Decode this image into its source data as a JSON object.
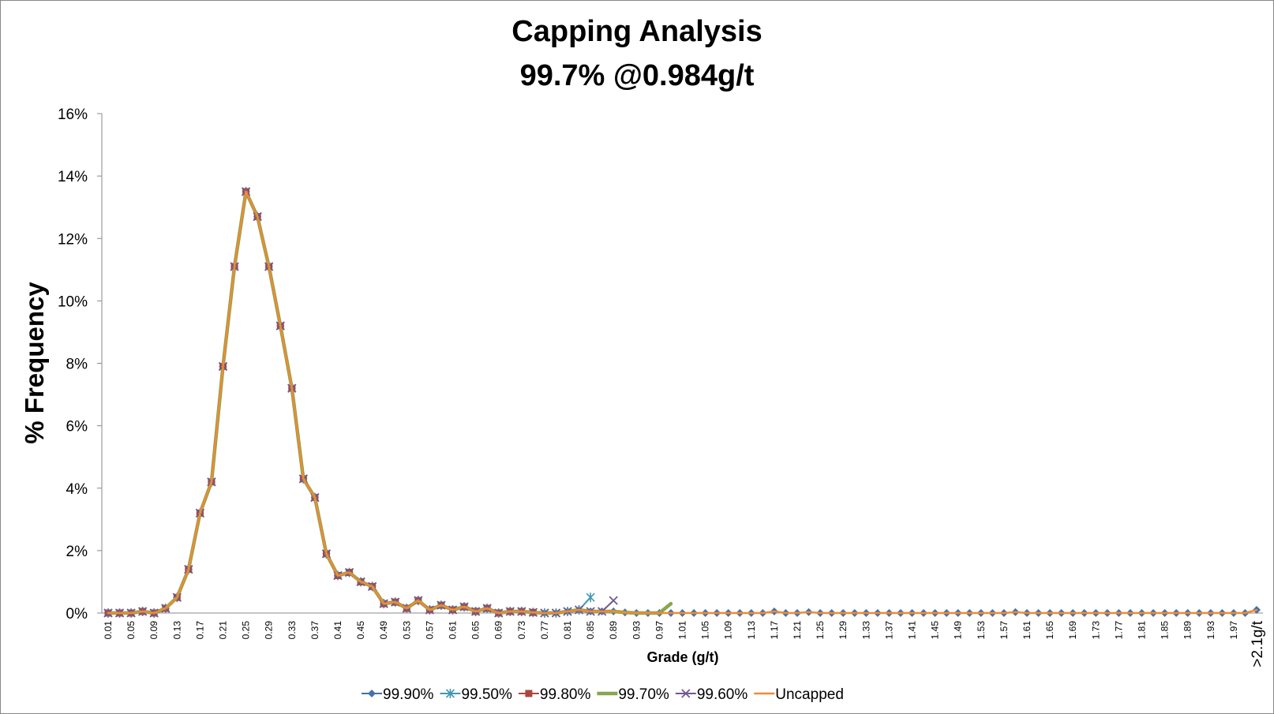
{
  "chart_data": {
    "type": "line",
    "title": "Capping Analysis",
    "subtitle": "99.7% @0.984g/t",
    "x_label": "Grade (g/t)",
    "y_label": "% Frequency",
    "categories": [
      "0.01",
      null,
      "0.05",
      null,
      "0.09",
      null,
      "0.13",
      null,
      "0.17",
      null,
      "0.21",
      null,
      "0.25",
      null,
      "0.29",
      null,
      "0.33",
      null,
      "0.37",
      null,
      "0.41",
      null,
      "0.45",
      null,
      "0.49",
      null,
      "0.53",
      null,
      "0.57",
      null,
      "0.61",
      null,
      "0.65",
      null,
      "0.69",
      null,
      "0.73",
      null,
      "0.77",
      null,
      "0.81",
      null,
      "0.85",
      null,
      "0.89",
      null,
      "0.93",
      null,
      "0.97",
      null,
      "1.01",
      null,
      "1.05",
      null,
      "1.09",
      null,
      "1.13",
      null,
      "1.17",
      null,
      "1.21",
      null,
      "1.25",
      null,
      "1.29",
      null,
      "1.33",
      null,
      "1.37",
      null,
      "1.41",
      null,
      "1.45",
      null,
      "1.49",
      null,
      "1.53",
      null,
      "1.57",
      null,
      "1.61",
      null,
      "1.65",
      null,
      "1.69",
      null,
      "1.73",
      null,
      "1.77",
      null,
      "1.81",
      null,
      "1.85",
      null,
      "1.89",
      null,
      "1.93",
      null,
      "1.97",
      null,
      ">2.1g/t"
    ],
    "ylim": [
      0,
      16
    ],
    "yticks": [
      {
        "value": 0,
        "label": "0%"
      },
      {
        "value": 2,
        "label": "2%"
      },
      {
        "value": 4,
        "label": "4%"
      },
      {
        "value": 6,
        "label": "6%"
      },
      {
        "value": 8,
        "label": "8%"
      },
      {
        "value": 10,
        "label": "10%"
      },
      {
        "value": 12,
        "label": "12%"
      },
      {
        "value": 14,
        "label": "14%"
      },
      {
        "value": 16,
        "label": "16%"
      }
    ],
    "legend": "bottom",
    "series": [
      {
        "name": "99.90%",
        "color": "#4572a7",
        "marker": "diamond",
        "line_width": 2,
        "values": [
          0,
          0,
          0,
          0.05,
          0,
          0.15,
          0.5,
          1.4,
          3.2,
          4.2,
          7.9,
          11.1,
          13.5,
          12.7,
          11.1,
          9.2,
          7.2,
          4.3,
          3.7,
          1.9,
          1.2,
          1.3,
          1.0,
          0.85,
          0.3,
          0.35,
          0.15,
          0.4,
          0.1,
          0.25,
          0.1,
          0.2,
          0.05,
          0.15,
          0,
          0.05,
          0.05,
          0.02,
          0,
          0,
          0.05,
          0.1,
          0.05,
          0.05,
          0.05,
          0.02,
          0,
          0,
          0,
          0,
          0,
          0,
          0,
          0,
          0,
          0,
          0,
          0,
          0.05,
          0,
          0,
          0.03,
          0,
          0,
          0,
          0,
          0,
          0,
          0,
          0,
          0,
          0,
          0,
          0,
          0,
          0,
          0,
          0,
          0,
          0.03,
          0,
          0,
          0,
          0,
          0,
          0,
          0,
          0,
          0,
          0,
          0,
          0,
          0,
          0,
          0,
          0,
          0,
          0,
          0,
          0,
          0.1
        ]
      },
      {
        "name": "99.50%",
        "color": "#4198af",
        "marker": "star",
        "line_width": 2,
        "values": [
          0,
          0,
          0,
          0.05,
          0,
          0.15,
          0.5,
          1.4,
          3.2,
          4.2,
          7.9,
          11.1,
          13.5,
          12.7,
          11.1,
          9.2,
          7.2,
          4.3,
          3.7,
          1.9,
          1.2,
          1.3,
          1.0,
          0.85,
          0.3,
          0.35,
          0.15,
          0.4,
          0.1,
          0.25,
          0.1,
          0.2,
          0.05,
          0.15,
          0,
          0.05,
          0.05,
          0.02,
          0,
          0,
          0.05,
          0.1,
          0.5,
          null,
          null,
          null,
          null,
          null,
          null,
          null,
          null,
          null,
          null,
          null,
          null,
          null,
          null,
          null,
          null,
          null,
          null,
          null,
          null,
          null,
          null,
          null,
          null,
          null,
          null,
          null,
          null,
          null,
          null,
          null,
          null,
          null,
          null,
          null,
          null,
          null,
          null,
          null,
          null,
          null,
          null,
          null,
          null,
          null,
          null,
          null,
          null,
          null,
          null,
          null,
          null,
          null,
          null,
          null,
          null,
          null,
          null
        ]
      },
      {
        "name": "99.80%",
        "color": "#aa4643",
        "marker": "square",
        "line_width": 2,
        "values": [
          0,
          0,
          0,
          0.05,
          0,
          0.15,
          0.5,
          1.4,
          3.2,
          4.2,
          7.9,
          11.1,
          13.5,
          12.7,
          11.1,
          9.2,
          7.2,
          4.3,
          3.7,
          1.9,
          1.2,
          1.3,
          1.0,
          0.85,
          0.3,
          0.35,
          0.15,
          0.4,
          0.1,
          0.25,
          0.1,
          0.2,
          0.05,
          0.15,
          0,
          0.05,
          0.05,
          0.02,
          null,
          null,
          null,
          null,
          null,
          null,
          null,
          null,
          null,
          null,
          null,
          null,
          null,
          null,
          null,
          null,
          null,
          null,
          null,
          null,
          null,
          null,
          null,
          null,
          null,
          null,
          null,
          null,
          null,
          null,
          null,
          null,
          null,
          null,
          null,
          null,
          null,
          null,
          null,
          null,
          null,
          null,
          null,
          null,
          null,
          null,
          null,
          null,
          null,
          null,
          null,
          null,
          null,
          null,
          null,
          null,
          null,
          null,
          null,
          null,
          null,
          null,
          null
        ]
      },
      {
        "name": "99.70%",
        "color": "#89a54e",
        "marker": "none",
        "line_width": 4.5,
        "values": [
          0,
          0,
          0,
          0.05,
          0,
          0.15,
          0.5,
          1.4,
          3.2,
          4.2,
          7.9,
          11.1,
          13.5,
          12.7,
          11.1,
          9.2,
          7.2,
          4.3,
          3.7,
          1.9,
          1.2,
          1.3,
          1.0,
          0.85,
          0.3,
          0.35,
          0.15,
          0.4,
          0.1,
          0.25,
          0.1,
          0.2,
          0.05,
          0.15,
          0,
          0.05,
          0.05,
          0.02,
          0,
          0,
          0.05,
          0.1,
          0.05,
          0.05,
          0.05,
          0.02,
          0,
          0,
          0,
          0.3,
          null,
          null,
          null,
          null,
          null,
          null,
          null,
          null,
          null,
          null,
          null,
          null,
          null,
          null,
          null,
          null,
          null,
          null,
          null,
          null,
          null,
          null,
          null,
          null,
          null,
          null,
          null,
          null,
          null,
          null,
          null,
          null,
          null,
          null,
          null,
          null,
          null,
          null,
          null,
          null,
          null,
          null,
          null,
          null,
          null,
          null,
          null,
          null,
          null,
          null,
          null
        ]
      },
      {
        "name": "99.60%",
        "color": "#71588f",
        "marker": "x",
        "line_width": 2,
        "values": [
          0,
          0,
          0,
          0.05,
          0,
          0.15,
          0.5,
          1.4,
          3.2,
          4.2,
          7.9,
          11.1,
          13.5,
          12.7,
          11.1,
          9.2,
          7.2,
          4.3,
          3.7,
          1.9,
          1.2,
          1.3,
          1.0,
          0.85,
          0.3,
          0.35,
          0.15,
          0.4,
          0.1,
          0.25,
          0.1,
          0.2,
          0.05,
          0.15,
          0,
          0.05,
          0.05,
          0.02,
          0,
          0,
          0.05,
          0.1,
          0.05,
          0.05,
          0.4,
          null,
          null,
          null,
          null,
          null,
          null,
          null,
          null,
          null,
          null,
          null,
          null,
          null,
          null,
          null,
          null,
          null,
          null,
          null,
          null,
          null,
          null,
          null,
          null,
          null,
          null,
          null,
          null,
          null,
          null,
          null,
          null,
          null,
          null,
          null,
          null,
          null,
          null,
          null,
          null,
          null,
          null,
          null,
          null,
          null,
          null,
          null,
          null,
          null,
          null,
          null,
          null,
          null,
          null,
          null,
          null
        ]
      },
      {
        "name": "Uncapped",
        "color": "#f08a35",
        "marker": "none",
        "line_width": 2.5,
        "values": [
          0,
          0,
          0,
          0.05,
          0,
          0.15,
          0.5,
          1.4,
          3.2,
          4.2,
          7.9,
          11.1,
          13.5,
          12.7,
          11.1,
          9.2,
          7.2,
          4.3,
          3.7,
          1.9,
          1.2,
          1.3,
          1.0,
          0.85,
          0.3,
          0.35,
          0.15,
          0.4,
          0.1,
          0.25,
          0.1,
          0.2,
          0.05,
          0.15,
          0,
          0.05,
          0.05,
          0.02,
          0,
          0,
          0.05,
          0.1,
          0.05,
          0.05,
          0.05,
          0.02,
          0,
          0,
          0,
          0,
          0,
          0,
          0,
          0,
          0,
          0,
          0,
          0,
          0.05,
          0,
          0,
          0.03,
          0,
          0,
          0,
          0,
          0,
          0,
          0,
          0,
          0,
          0,
          0,
          0,
          0,
          0,
          0,
          0,
          0,
          0.03,
          0,
          0,
          0,
          0,
          0,
          0,
          0,
          0,
          0,
          0,
          0,
          0,
          0,
          0,
          0,
          0,
          0,
          0,
          0,
          0,
          0.1
        ]
      }
    ]
  }
}
